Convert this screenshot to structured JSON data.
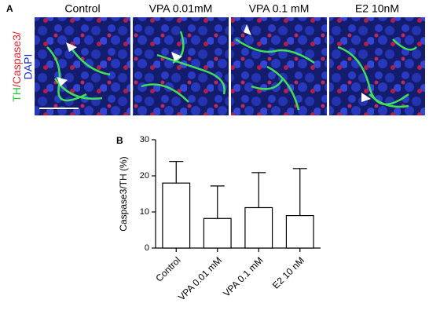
{
  "panel_a": {
    "label": "A",
    "columns": [
      "Control",
      "VPA 0.01mM",
      "VPA 0.1 mM",
      "E2 10nM"
    ],
    "channel_labels": [
      "TH",
      "/Caspase3/",
      "DAPI"
    ]
  },
  "chart_data": {
    "type": "bar",
    "panel_label": "B",
    "y_label": "Caspase3/TH (%)",
    "categories": [
      "Control",
      "VPA 0.01 mM",
      "VPA 0.1 mM",
      "E2 10 nM"
    ],
    "values": [
      18,
      8.2,
      11.2,
      9
    ],
    "errors": [
      6,
      9,
      9.7,
      13
    ],
    "color": "#ffffff",
    "ylim": [
      0,
      30
    ],
    "yticks": [
      0,
      10,
      20,
      30
    ]
  }
}
